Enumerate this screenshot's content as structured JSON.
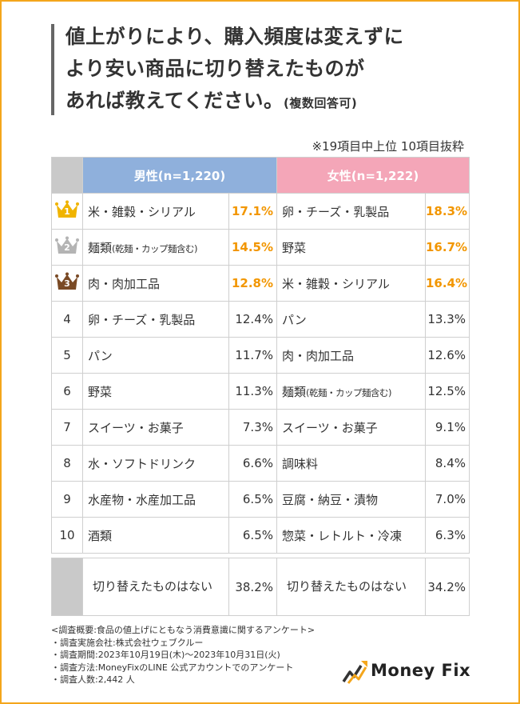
{
  "title": {
    "line1": "値上がりにより、購入頻度は変えずに",
    "line2": "より安い商品に切り替えたものが",
    "line3": "あれば教えてください。",
    "sub": "(複数回答可)"
  },
  "note": "※19項目中上位 10項目抜粋",
  "colors": {
    "male_header": "#8fb0dc",
    "female_header": "#f4a6b8",
    "top3_value": "#f29600",
    "frame": "#f4a61c",
    "gold": "#f0b400",
    "silver": "#b4b4b4",
    "bronze": "#7a4a25"
  },
  "chart_data": {
    "type": "table",
    "columns": [
      "男性(n=1,220)",
      "女性(n=1,222)"
    ],
    "rows": [
      {
        "rank": "1",
        "male_item": "米・雑穀・シリアル",
        "male_value": "17.1%",
        "female_item": "卵・チーズ・乳製品",
        "female_value": "18.3%"
      },
      {
        "rank": "2",
        "male_item": "麺類",
        "male_item_note": "(乾麺・カップ麺含む)",
        "male_value": "14.5%",
        "female_item": "野菜",
        "female_value": "16.7%"
      },
      {
        "rank": "3",
        "male_item": "肉・肉加工品",
        "male_value": "12.8%",
        "female_item": "米・雑穀・シリアル",
        "female_value": "16.4%"
      },
      {
        "rank": "4",
        "male_item": "卵・チーズ・乳製品",
        "male_value": "12.4%",
        "female_item": "パン",
        "female_value": "13.3%"
      },
      {
        "rank": "5",
        "male_item": "パン",
        "male_value": "11.7%",
        "female_item": "肉・肉加工品",
        "female_value": "12.6%"
      },
      {
        "rank": "6",
        "male_item": "野菜",
        "male_value": "11.3%",
        "female_item": "麺類",
        "female_item_note": "(乾麺・カップ麺含む)",
        "female_value": "12.5%"
      },
      {
        "rank": "7",
        "male_item": "スイーツ・お菓子",
        "male_value": "7.3%",
        "female_item": "スイーツ・お菓子",
        "female_value": "9.1%"
      },
      {
        "rank": "8",
        "male_item": "水・ソフトドリンク",
        "male_value": "6.6%",
        "female_item": "調味料",
        "female_value": "8.4%"
      },
      {
        "rank": "9",
        "male_item": "水産物・水産加工品",
        "male_value": "6.5%",
        "female_item": "豆腐・納豆・漬物",
        "female_value": "7.0%"
      },
      {
        "rank": "10",
        "male_item": "酒類",
        "male_value": "6.5%",
        "female_item": "惣菜・レトルト・冷凍",
        "female_value": "6.3%"
      }
    ],
    "none_row": {
      "male_item": "切り替えたものはない",
      "male_value": "38.2%",
      "female_item": "切り替えたものはない",
      "female_value": "34.2%"
    }
  },
  "footer": [
    "<調査概要:食品の値上げにともなう消費意識に関するアンケート>",
    "・調査実施会社:株式会社ウェブクルー",
    "・調査期間:2023年10月19日(木)〜2023年10月31日(火)",
    "・調査方法:MoneyFixのLINE 公式アカウントでのアンケート",
    "・調査人数:2,442 人"
  ],
  "logo": {
    "text": "Money Fix",
    "icon": "chart-arrow-logo-icon"
  },
  "rank_icons": [
    "gold-crown-icon",
    "silver-crown-icon",
    "bronze-crown-icon"
  ]
}
